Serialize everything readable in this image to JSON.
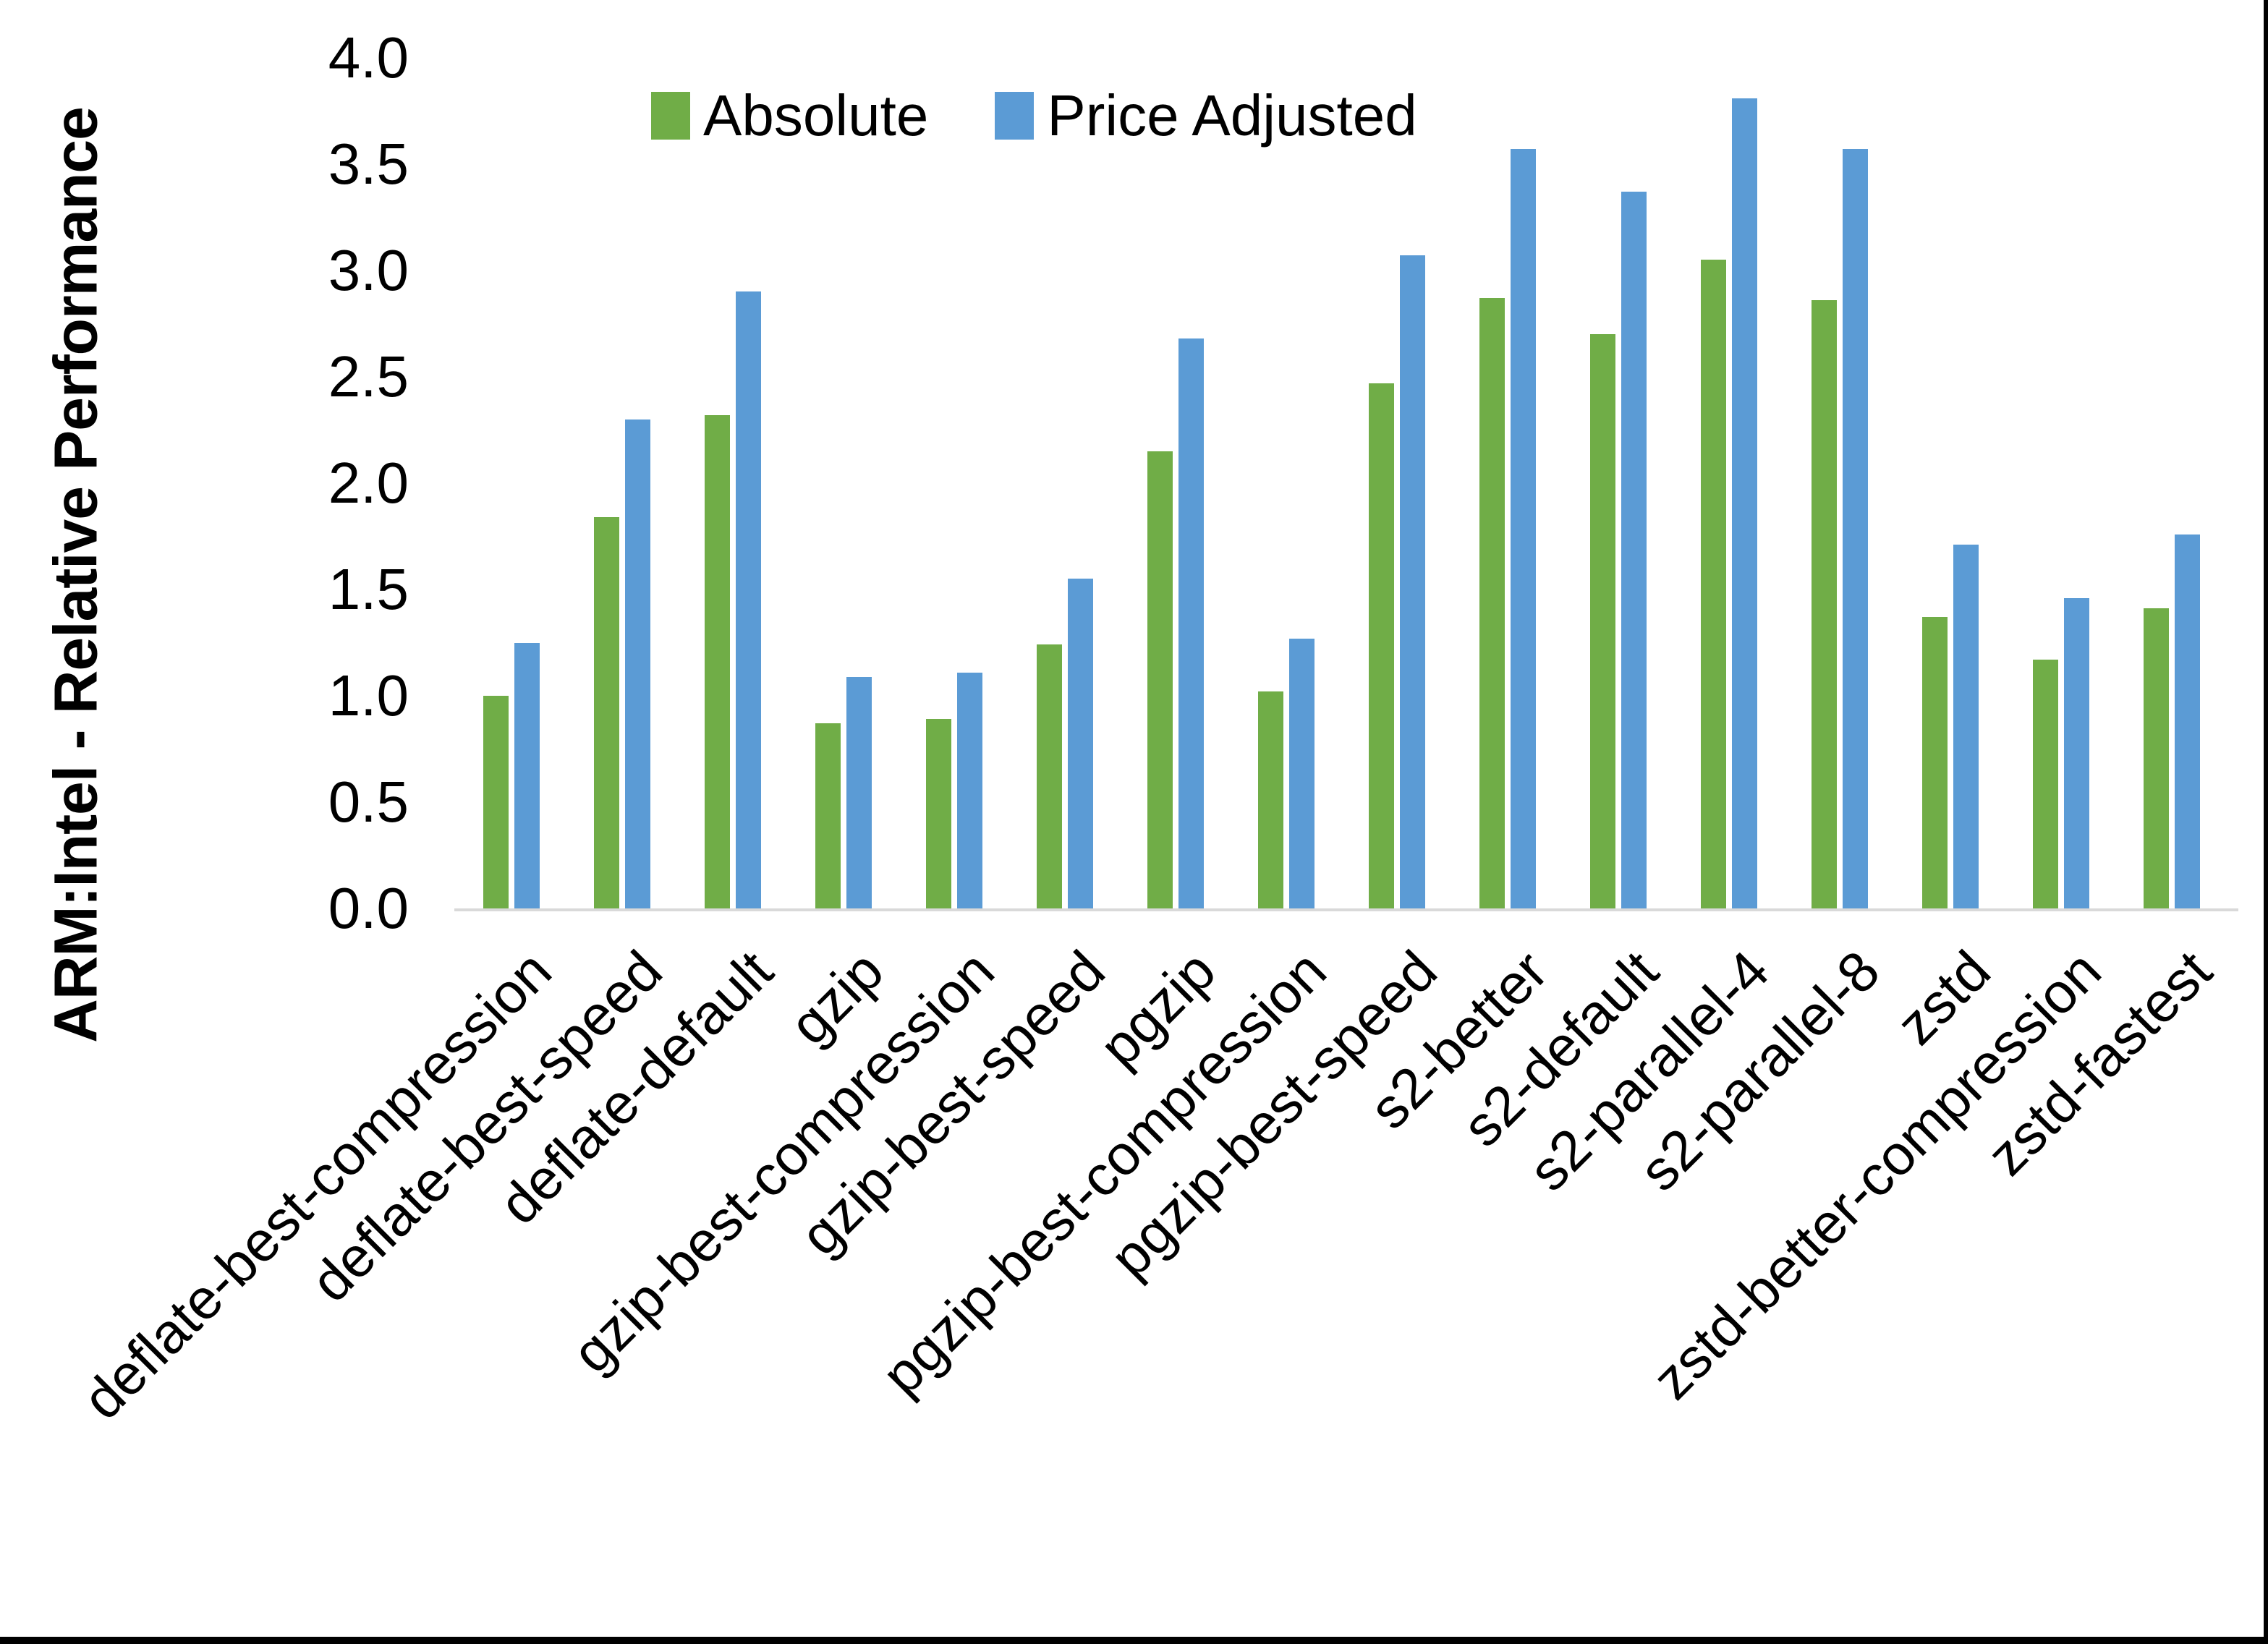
{
  "y_axis": {
    "title": "ARM:Intel - Relative Performance",
    "tick_labels": [
      "4.0",
      "3.5",
      "3.0",
      "2.5",
      "2.0",
      "1.5",
      "1.0",
      "0.5",
      "0.0"
    ],
    "min": 0.0,
    "max": 4.0
  },
  "legend": {
    "items": [
      {
        "label": "Absolute",
        "color": "#70AD47"
      },
      {
        "label": "Price Adjusted",
        "color": "#5B9BD5"
      }
    ]
  },
  "chart_data": {
    "type": "bar",
    "title": "",
    "xlabel": "",
    "ylabel": "ARM:Intel - Relative Performance",
    "ylim": [
      0.0,
      4.0
    ],
    "ytick_step": 0.5,
    "grid": false,
    "legend_position": "top",
    "categories": [
      "deflate-best-compression",
      "deflate-best-speed",
      "deflate-default",
      "gzip",
      "gzip-best-compression",
      "gzip-best-speed",
      "pgzip",
      "pgzip-best-compression",
      "pgzip-best-speed",
      "s2-better",
      "s2-default",
      "s2-parallel-4",
      "s2-parallel-8",
      "zstd",
      "zstd-better-compression",
      "zstd-fastest"
    ],
    "series": [
      {
        "name": "Absolute",
        "color": "#70AD47",
        "values": [
          1.0,
          1.84,
          2.32,
          0.87,
          0.89,
          1.24,
          2.15,
          1.02,
          2.47,
          2.87,
          2.7,
          3.05,
          2.86,
          1.37,
          1.17,
          1.41
        ]
      },
      {
        "name": "Price Adjusted",
        "color": "#5B9BD5",
        "values": [
          1.25,
          2.3,
          2.9,
          1.09,
          1.11,
          1.55,
          2.68,
          1.27,
          3.07,
          3.57,
          3.37,
          3.81,
          3.57,
          1.71,
          1.46,
          1.76
        ]
      }
    ],
    "colors": {
      "axis_line": "#D9D9D9",
      "text": "#000000",
      "background": "#FFFFFF",
      "frame_border": "#000000"
    }
  }
}
